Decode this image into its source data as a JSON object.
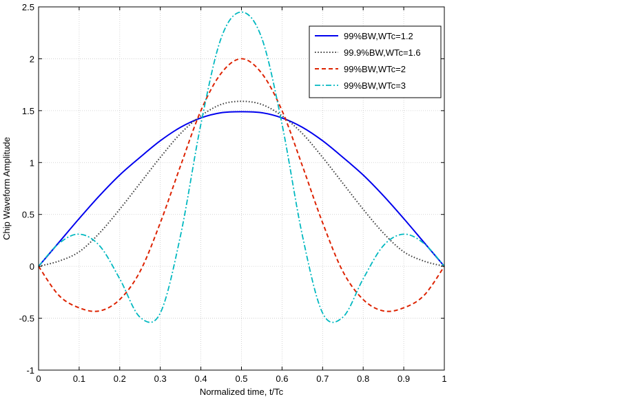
{
  "chart_data": {
    "type": "line",
    "title": "",
    "xlabel": "Normalized time, t/Tc",
    "ylabel": "Chip Waveform Amplitude",
    "xlim": [
      0,
      1
    ],
    "ylim": [
      -1,
      2.5
    ],
    "xticks": [
      0,
      0.1,
      0.2,
      0.3,
      0.4,
      0.5,
      0.6,
      0.7,
      0.8,
      0.9,
      1
    ],
    "xtick_labels": [
      "0",
      "0.1",
      "0.2",
      "0.3",
      "0.4",
      "0.5",
      "0.6",
      "0.7",
      "0.8",
      "0.9",
      "1"
    ],
    "yticks": [
      -1,
      -0.5,
      0,
      0.5,
      1,
      1.5,
      2,
      2.5
    ],
    "ytick_labels": [
      "-1",
      "-0.5",
      "0",
      "0.5",
      "1",
      "1.5",
      "2",
      "2.5"
    ],
    "grid": true,
    "legend_position": "top-right",
    "x": [
      0,
      0.05,
      0.1,
      0.15,
      0.2,
      0.25,
      0.3,
      0.35,
      0.4,
      0.45,
      0.5,
      0.55,
      0.6,
      0.65,
      0.7,
      0.75,
      0.8,
      0.85,
      0.9,
      0.95,
      1
    ],
    "series": [
      {
        "name": "99%BW,WTc=1.2",
        "color": "#0000ee",
        "style": "solid",
        "values": [
          0,
          0.23,
          0.46,
          0.68,
          0.88,
          1.05,
          1.21,
          1.34,
          1.43,
          1.48,
          1.49,
          1.48,
          1.43,
          1.34,
          1.21,
          1.05,
          0.88,
          0.68,
          0.46,
          0.23,
          0
        ]
      },
      {
        "name": "99.9%BW,WTc=1.6",
        "color": "#404040",
        "style": "dotted",
        "values": [
          0,
          0.05,
          0.14,
          0.32,
          0.55,
          0.8,
          1.05,
          1.28,
          1.45,
          1.56,
          1.59,
          1.56,
          1.45,
          1.28,
          1.05,
          0.8,
          0.55,
          0.32,
          0.14,
          0.05,
          0
        ]
      },
      {
        "name": "99%BW,WTc=2",
        "color": "#dd2200",
        "style": "dashed",
        "values": [
          0,
          -0.28,
          -0.4,
          -0.43,
          -0.32,
          -0.05,
          0.42,
          0.97,
          1.5,
          1.86,
          2.0,
          1.86,
          1.5,
          0.97,
          0.42,
          -0.05,
          -0.32,
          -0.43,
          -0.4,
          -0.28,
          0
        ]
      },
      {
        "name": "99%BW,WTc=3",
        "color": "#00b8c0",
        "style": "dashdot",
        "values": [
          0,
          0.22,
          0.31,
          0.2,
          -0.12,
          -0.49,
          -0.45,
          0.3,
          1.37,
          2.2,
          2.45,
          2.2,
          1.37,
          0.3,
          -0.45,
          -0.49,
          -0.12,
          0.2,
          0.31,
          0.22,
          0
        ]
      }
    ]
  }
}
